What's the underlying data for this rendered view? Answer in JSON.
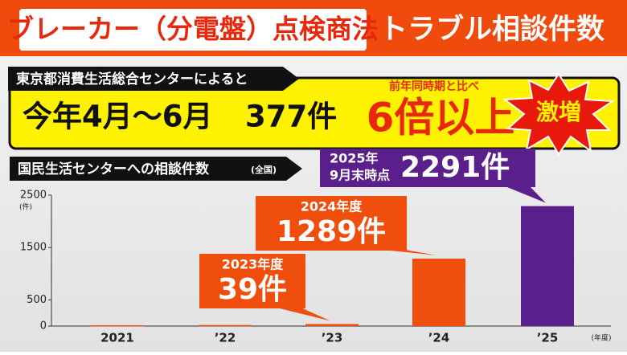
{
  "header": {
    "title_red": "ブレーカー（分電盤）点検商法",
    "title_white": "トラブル相談件数"
  },
  "source_label": "東京都消費生活総合センターによると",
  "info": {
    "period": "今年4月～6月",
    "count": "377件",
    "comparison_note": "前年同時期と比べ",
    "comparison": "6倍以上",
    "badge": "激増"
  },
  "chart_data": {
    "type": "bar",
    "title": "国民生活センターへの相談件数",
    "title_note": "(全国)",
    "categories": [
      "2021",
      "’22",
      "’23",
      "’24",
      "’25"
    ],
    "values": [
      15,
      20,
      39,
      1289,
      2291
    ],
    "value_labels": [
      null,
      null,
      "39件",
      "1289件",
      "2291件"
    ],
    "callout_titles": [
      null,
      null,
      [
        "2023年度"
      ],
      [
        "2024年度"
      ],
      [
        "2025年",
        "9月末時点"
      ]
    ],
    "colors": [
      "#f04e0c",
      "#f04e0c",
      "#f04e0c",
      "#f04e0c",
      "#5b1f8c"
    ],
    "x_unit": "(年度)",
    "y_unit": "(件)",
    "ylim": [
      0,
      2500
    ],
    "yticks": [
      0,
      500,
      1500,
      2500
    ]
  }
}
